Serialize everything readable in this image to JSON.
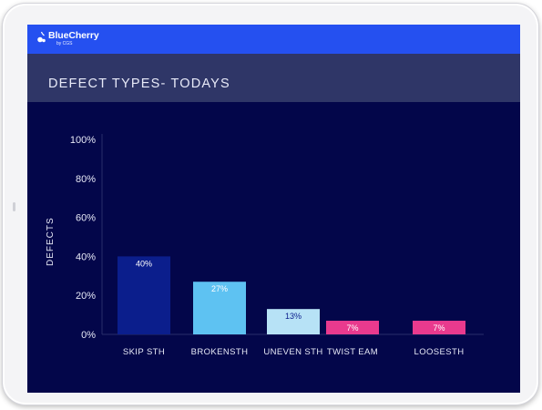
{
  "brand": {
    "name": "BlueCherry",
    "tagline": "by CGS"
  },
  "page": {
    "title": "DEFECT TYPES- TODAYS"
  },
  "colors": {
    "screen_bg": "#03064a",
    "header_bg": "#2550f0",
    "title_bar_bg": "#2f3667",
    "axis_text": "#e6e8f6"
  },
  "chart_data": {
    "type": "bar",
    "title": "",
    "xlabel": "",
    "ylabel": "DEFECTS",
    "categories": [
      "SKIP STH",
      "BROKENSTH",
      "UNEVEN STH",
      "TWIST EAM",
      "LOOSESTH"
    ],
    "values": [
      40,
      27,
      13,
      7,
      7
    ],
    "value_labels": [
      "40%",
      "27%",
      "13%",
      "7%",
      "7%"
    ],
    "bar_colors": [
      "#0b1e8c",
      "#5ec2f2",
      "#b7e2f6",
      "#e93a8e",
      "#e93a8e"
    ],
    "label_colors": [
      "#ffffff",
      "#ffffff",
      "#0b1e8c",
      "#ffffff",
      "#ffffff"
    ],
    "yticks": [
      "0%",
      "20%",
      "40%",
      "60%",
      "80%",
      "100%"
    ],
    "ylim": [
      0,
      100
    ],
    "grid": false,
    "legend": "none"
  }
}
